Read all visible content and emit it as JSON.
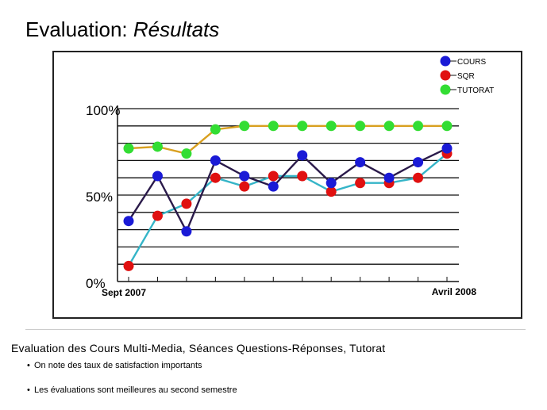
{
  "slide": {
    "title_main": "Evaluation: ",
    "title_italic": "Résultats",
    "caption": "Evaluation des Cours Multi-Media, Séances Questions-Réponses, Tutorat",
    "bullets": [
      "On note des taux de satisfaction importants",
      "Les évaluations sont meilleures au second semestre"
    ]
  },
  "chart_data": {
    "type": "line",
    "title": "",
    "xlabel": "",
    "ylabel": "",
    "x_tick_labels": {
      "first": "Sept 2007",
      "last": "Avril 2008"
    },
    "y_tick_labels": [
      "0%",
      "50%",
      "100%"
    ],
    "ylim": [
      0,
      100
    ],
    "grid": true,
    "legend_position": "top-right",
    "n_points": 12,
    "series": [
      {
        "name": "COURS",
        "marker_color": "#1a1ad6",
        "line_color": "#2a1a4a",
        "values": [
          35,
          61,
          29,
          70,
          61,
          55,
          73,
          57,
          69,
          60,
          69,
          77
        ]
      },
      {
        "name": "SQR",
        "marker_color": "#e01010",
        "line_color": "#35b5c8",
        "values": [
          9,
          38,
          45,
          60,
          55,
          61,
          61,
          52,
          57,
          57,
          60,
          74
        ]
      },
      {
        "name": "TUTORAT",
        "marker_color": "#33dd33",
        "line_color": "#d9a020",
        "values": [
          77,
          78,
          74,
          88,
          90,
          90,
          90,
          90,
          90,
          90,
          90,
          90
        ]
      }
    ]
  }
}
